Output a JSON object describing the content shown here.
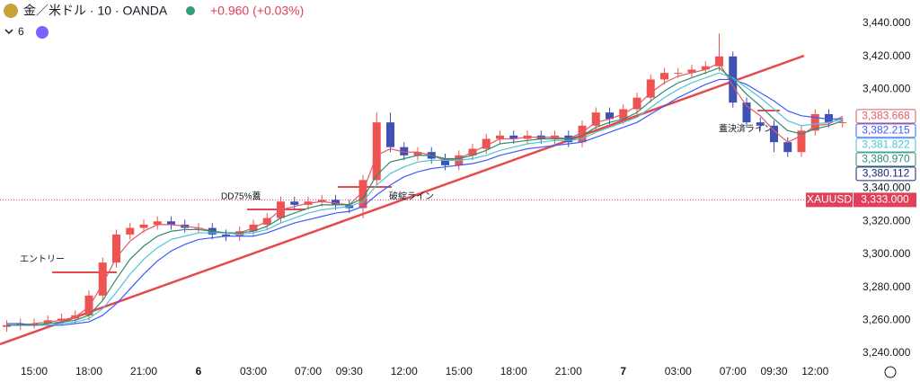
{
  "header": {
    "symbol": "金／米ドル · 10 · OANDA",
    "change": "+0.960 (+0.03%)",
    "indicator_count": "6"
  },
  "chart_data": {
    "type": "candlestick",
    "x": [
      null,
      null,
      "15:00",
      null,
      null,
      null,
      "18:00",
      null,
      null,
      null,
      "21:00",
      null,
      null,
      null,
      "6",
      null,
      null,
      null,
      "03:00",
      null,
      null,
      null,
      "07:00",
      null,
      null,
      "09:30",
      null,
      null,
      null,
      "12:00",
      null,
      null,
      null,
      "15:00",
      null,
      null,
      null,
      "18:00",
      null,
      null,
      null,
      "21:00",
      null,
      null,
      null,
      "7",
      null,
      null,
      null,
      "03:00",
      null,
      null,
      null,
      "07:00",
      null,
      null,
      "09:30",
      null,
      null,
      "12:00",
      null,
      null
    ],
    "candles": {
      "up_color": "#ef5350",
      "down_color": "#3f51b5",
      "open": [
        3256,
        3257,
        3258,
        3258,
        3260,
        3261,
        3263,
        3275,
        3295,
        3312,
        3316,
        3318,
        3320,
        3318,
        3316,
        3316,
        3312,
        3311,
        3314,
        3318,
        3322,
        3332,
        3330,
        3332,
        3333,
        3330,
        3328,
        3345,
        3380,
        3365,
        3360,
        3362,
        3358,
        3354,
        3360,
        3364,
        3370,
        3372,
        3370,
        3372,
        3370,
        3372,
        3368,
        3378,
        3386,
        3382,
        3388,
        3395,
        3406,
        3410,
        3410,
        3412,
        3414,
        3420,
        3392,
        3380,
        3378,
        3368,
        3362,
        3375,
        3385,
        3380
      ],
      "high": [
        3260,
        3261,
        3261,
        3263,
        3264,
        3266,
        3278,
        3298,
        3315,
        3319,
        3321,
        3323,
        3323,
        3321,
        3319,
        3319,
        3315,
        3317,
        3321,
        3325,
        3335,
        3335,
        3335,
        3336,
        3336,
        3333,
        3348,
        3386,
        3386,
        3368,
        3365,
        3365,
        3361,
        3363,
        3367,
        3373,
        3375,
        3375,
        3375,
        3375,
        3375,
        3375,
        3381,
        3389,
        3389,
        3391,
        3398,
        3409,
        3413,
        3413,
        3415,
        3417,
        3434,
        3423,
        3395,
        3383,
        3381,
        3371,
        3378,
        3388,
        3388,
        3383
      ],
      "low": [
        3253,
        3254,
        3255,
        3255,
        3257,
        3258,
        3260,
        3272,
        3292,
        3309,
        3313,
        3315,
        3315,
        3313,
        3313,
        3309,
        3308,
        3308,
        3311,
        3315,
        3319,
        3327,
        3327,
        3329,
        3327,
        3325,
        3322,
        3342,
        3362,
        3357,
        3357,
        3355,
        3351,
        3351,
        3357,
        3361,
        3367,
        3367,
        3367,
        3367,
        3367,
        3365,
        3365,
        3375,
        3379,
        3379,
        3385,
        3392,
        3403,
        3407,
        3407,
        3409,
        3411,
        3389,
        3377,
        3375,
        3362,
        3359,
        3359,
        3372,
        3377,
        3377
      ],
      "close": [
        3257,
        3258,
        3258,
        3260,
        3261,
        3263,
        3275,
        3295,
        3312,
        3316,
        3318,
        3320,
        3318,
        3316,
        3316,
        3312,
        3311,
        3314,
        3318,
        3322,
        3332,
        3330,
        3332,
        3333,
        3330,
        3328,
        3345,
        3380,
        3365,
        3360,
        3362,
        3358,
        3354,
        3360,
        3364,
        3370,
        3372,
        3370,
        3372,
        3370,
        3372,
        3368,
        3378,
        3386,
        3382,
        3388,
        3395,
        3406,
        3410,
        3410,
        3412,
        3414,
        3420,
        3392,
        3380,
        3378,
        3368,
        3362,
        3375,
        3385,
        3380,
        3380.112
      ],
      "value_labels": [
        null,
        null,
        null,
        null,
        null,
        null,
        null,
        null,
        null,
        null,
        null,
        null,
        null,
        null,
        null,
        null,
        null,
        null,
        null,
        null,
        null,
        null,
        null,
        null,
        null,
        null,
        null,
        null,
        null,
        null,
        null,
        null,
        null,
        null,
        null,
        null,
        null,
        null,
        null,
        null,
        null,
        null,
        null,
        null,
        null,
        null,
        null,
        null,
        null,
        null,
        null,
        null,
        null,
        null,
        null,
        null,
        null,
        null,
        null,
        null,
        null,
        "3,380.112"
      ],
      "label_color": "#1a237e"
    },
    "series": [
      {
        "color": "#e05a6a",
        "values": [
          3257,
          3257,
          3258,
          3259,
          3260,
          3262,
          3268,
          3282,
          3298,
          3308,
          3314,
          3318,
          3318,
          3317,
          3316,
          3314,
          3313,
          3313,
          3316,
          3320,
          3327,
          3329,
          3331,
          3332,
          3331,
          3330,
          3338,
          3360,
          3364,
          3362,
          3362,
          3360,
          3357,
          3358,
          3362,
          3366,
          3370,
          3370,
          3371,
          3371,
          3371,
          3370,
          3374,
          3380,
          3382,
          3385,
          3390,
          3398,
          3404,
          3408,
          3410,
          3412,
          3416,
          3402,
          3390,
          3384,
          3375,
          3368,
          3372,
          3378,
          3379,
          3383.668
        ],
        "value_labels": [
          null,
          null,
          null,
          null,
          null,
          null,
          null,
          null,
          null,
          null,
          null,
          null,
          null,
          null,
          null,
          null,
          null,
          null,
          null,
          null,
          null,
          null,
          null,
          null,
          null,
          null,
          null,
          null,
          null,
          null,
          null,
          null,
          null,
          null,
          null,
          null,
          null,
          null,
          null,
          null,
          null,
          null,
          null,
          null,
          null,
          null,
          null,
          null,
          null,
          null,
          null,
          null,
          null,
          null,
          null,
          null,
          null,
          null,
          null,
          null,
          null,
          "3,383.668"
        ]
      },
      {
        "color": "#3d5afe",
        "values": [
          3258,
          3258,
          3257,
          3257,
          3257,
          3258,
          3259,
          3263,
          3270,
          3279,
          3288,
          3296,
          3302,
          3306,
          3309,
          3310,
          3311,
          3311,
          3311,
          3313,
          3316,
          3319,
          3321,
          3323,
          3325,
          3326,
          3329,
          3336,
          3342,
          3347,
          3350,
          3352,
          3353,
          3354,
          3355,
          3357,
          3360,
          3362,
          3364,
          3365,
          3366,
          3367,
          3368,
          3371,
          3374,
          3377,
          3380,
          3385,
          3390,
          3395,
          3399,
          3403,
          3406,
          3406,
          3403,
          3398,
          3393,
          3387,
          3384,
          3383,
          3382,
          3382.215
        ],
        "value_labels": [
          null,
          null,
          null,
          null,
          null,
          null,
          null,
          null,
          null,
          null,
          null,
          null,
          null,
          null,
          null,
          null,
          null,
          null,
          null,
          null,
          null,
          null,
          null,
          null,
          null,
          null,
          null,
          null,
          null,
          null,
          null,
          null,
          null,
          null,
          null,
          null,
          null,
          null,
          null,
          null,
          null,
          null,
          null,
          null,
          null,
          null,
          null,
          null,
          null,
          null,
          null,
          null,
          null,
          null,
          null,
          null,
          null,
          null,
          null,
          null,
          null,
          "3,382.215"
        ]
      },
      {
        "color": "#4fc3d7",
        "values": [
          3257,
          3257,
          3257,
          3257,
          3258,
          3259,
          3261,
          3267,
          3277,
          3288,
          3297,
          3304,
          3309,
          3311,
          3313,
          3313,
          3313,
          3312,
          3313,
          3315,
          3319,
          3322,
          3325,
          3327,
          3328,
          3329,
          3332,
          3342,
          3349,
          3353,
          3356,
          3357,
          3357,
          3357,
          3358,
          3360,
          3363,
          3365,
          3367,
          3368,
          3369,
          3369,
          3370,
          3374,
          3377,
          3380,
          3383,
          3389,
          3395,
          3400,
          3404,
          3407,
          3410,
          3407,
          3401,
          3395,
          3388,
          3381,
          3378,
          3379,
          3380,
          3381.822
        ],
        "value_labels": [
          null,
          null,
          null,
          null,
          null,
          null,
          null,
          null,
          null,
          null,
          null,
          null,
          null,
          null,
          null,
          null,
          null,
          null,
          null,
          null,
          null,
          null,
          null,
          null,
          null,
          null,
          null,
          null,
          null,
          null,
          null,
          null,
          null,
          null,
          null,
          null,
          null,
          null,
          null,
          null,
          null,
          null,
          null,
          null,
          null,
          null,
          null,
          null,
          null,
          null,
          null,
          null,
          null,
          null,
          null,
          null,
          null,
          null,
          null,
          null,
          null,
          "3,381.822"
        ]
      },
      {
        "color": "#2e8b6e",
        "values": [
          3257,
          3257,
          3257,
          3258,
          3259,
          3260,
          3263,
          3272,
          3285,
          3297,
          3305,
          3311,
          3314,
          3315,
          3315,
          3314,
          3313,
          3313,
          3314,
          3317,
          3322,
          3325,
          3328,
          3330,
          3330,
          3330,
          3334,
          3348,
          3356,
          3358,
          3360,
          3360,
          3358,
          3358,
          3360,
          3363,
          3367,
          3368,
          3369,
          3370,
          3370,
          3370,
          3372,
          3377,
          3380,
          3382,
          3386,
          3393,
          3399,
          3404,
          3407,
          3410,
          3413,
          3406,
          3397,
          3390,
          3382,
          3375,
          3373,
          3376,
          3378,
          3380.97
        ],
        "value_labels": [
          null,
          null,
          null,
          null,
          null,
          null,
          null,
          null,
          null,
          null,
          null,
          null,
          null,
          null,
          null,
          null,
          null,
          null,
          null,
          null,
          null,
          null,
          null,
          null,
          null,
          null,
          null,
          null,
          null,
          null,
          null,
          null,
          null,
          null,
          null,
          null,
          null,
          null,
          null,
          null,
          null,
          null,
          null,
          null,
          null,
          null,
          null,
          null,
          null,
          null,
          null,
          null,
          null,
          null,
          null,
          null,
          null,
          null,
          null,
          null,
          null,
          "3,380.970"
        ]
      }
    ],
    "price_line": {
      "name": "XAUUSD",
      "value": 3333,
      "value_label": "3,333.000",
      "color": "#e0405a"
    },
    "annotations": [
      "エントリー",
      "DD75%蓋",
      "破綻ライン",
      "蓋決済ライン"
    ],
    "ylim": [
      3236.2,
      3454.2
    ],
    "yticks": [
      {
        "value": 3240,
        "label": "3,240.000"
      },
      {
        "value": 3260,
        "label": "3,260.000"
      },
      {
        "value": 3280,
        "label": "3,280.000"
      },
      {
        "value": 3300,
        "label": "3,300.000"
      },
      {
        "value": 3320,
        "label": "3,320.000"
      },
      {
        "value": 3340,
        "label": "3,340.000"
      },
      {
        "value": 3360,
        "label": "3,360.000"
      },
      {
        "value": 3380,
        "label": "3,380.000"
      },
      {
        "value": 3400,
        "label": "3,400.000"
      },
      {
        "value": 3420,
        "label": "3,420.000"
      },
      {
        "value": 3440,
        "label": "3,440.000"
      }
    ],
    "grid": false
  }
}
